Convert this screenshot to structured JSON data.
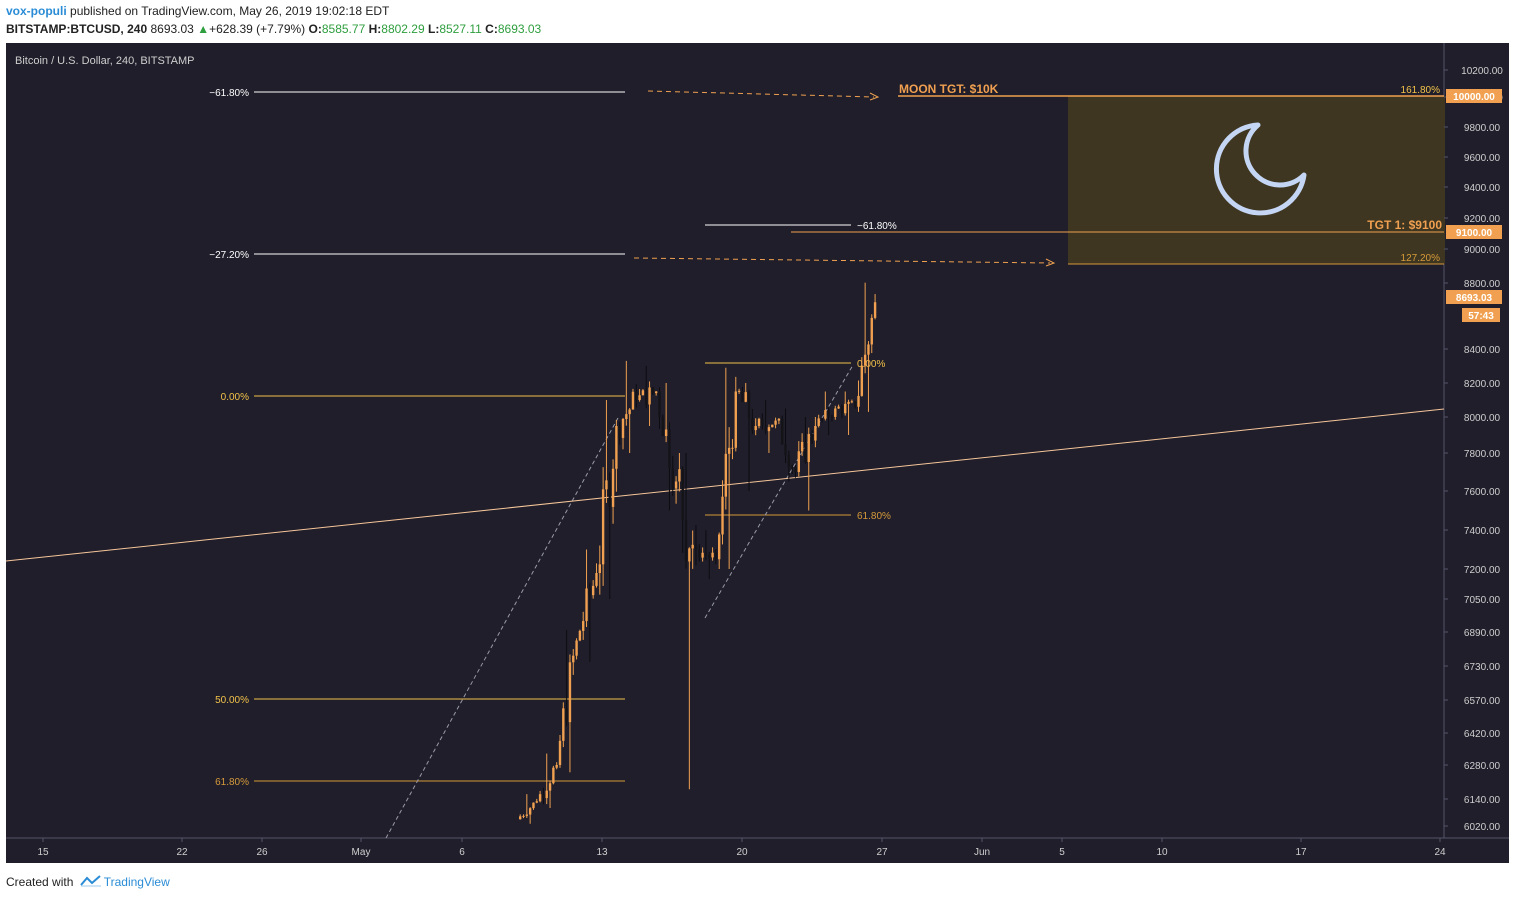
{
  "header": {
    "author": "vox-populi",
    "published": "published on TradingView.com, May 26, 2019 19:02:18 EDT",
    "symbol": "BITSTAMP:BTCUSD, 240",
    "last": "8693.03",
    "change": "+628.39 (+7.79%)",
    "o_label": "O:",
    "o": "8585.77",
    "h_label": "H:",
    "h": "8802.29",
    "l_label": "L:",
    "l": "8527.11",
    "c_label": "C:",
    "c": "8693.03"
  },
  "footer": {
    "created": "Created with",
    "brand": "TradingView"
  },
  "colors": {
    "background": "#1f1e2a",
    "candle": "#f0a050",
    "fib_gold": "#f3c24a",
    "fib_dark": "#d69a3a",
    "level_line": "#ffffff",
    "moon": "#c5d6f5",
    "zone": "#3e3620"
  },
  "chart_data": {
    "type": "candlestick",
    "title": "Bitcoin / U.S. Dollar, 240, BITSTAMP",
    "ylim": [
      5900,
      10450
    ],
    "y_ticks": [
      "10200.00",
      "10000.00",
      "9800.00",
      "9600.00",
      "9400.00",
      "9200.00",
      "9000.00",
      "8800.00",
      "8600.00",
      "8400.00",
      "8200.00",
      "8000.00",
      "7800.00",
      "7600.00",
      "7400.00",
      "7200.00",
      "7050.00",
      "6890.00",
      "6730.00",
      "6570.00",
      "6420.00",
      "6280.00",
      "6140.00",
      "6020.00"
    ],
    "x_ticks": [
      "15",
      "22",
      "26",
      "May",
      "6",
      "13",
      "20",
      "27",
      "Jun",
      "5",
      "10",
      "17",
      "24"
    ],
    "price_labels": {
      "target": "10000.00",
      "tgt1": "9100.00",
      "last": "8693.03",
      "countdown": "57:43"
    },
    "fib_labels": {
      "ext_top": "−61.80%",
      "ext_mid": "−27.20%",
      "zero": "0.00%",
      "half": "50.00%",
      "golden": "61.80%",
      "second_ext": "−61.80%",
      "second_zero": "0.00%",
      "second_golden": "61.80%",
      "box_top": "161.80%",
      "box_bottom": "127.20%"
    },
    "annotations": {
      "moon": "MOON  TGT: $10K",
      "tgt1": "TGT 1: $9100"
    },
    "levels": {
      "moon_target": 10000,
      "tgt1": 9100,
      "box_top": 10000,
      "box_bottom": 8900
    },
    "trendline": {
      "from": [
        "Apr 8",
        7230
      ],
      "to": [
        "Jun 27",
        8050
      ]
    },
    "candles_approx": [
      [
        "May 9",
        6050,
        6160,
        6030,
        6130
      ],
      [
        "May 10",
        6130,
        6330,
        6100,
        6280
      ],
      [
        "May 11",
        6280,
        6900,
        6250,
        6850
      ],
      [
        "May 12",
        6850,
        7300,
        6750,
        7180
      ],
      [
        "May 13",
        7180,
        8100,
        7050,
        7950
      ],
      [
        "May 14",
        7950,
        8330,
        7800,
        8100
      ],
      [
        "May 15",
        8100,
        8300,
        7950,
        8150
      ],
      [
        "May 16",
        8150,
        8200,
        7500,
        7650
      ],
      [
        "May 17",
        7650,
        7800,
        6180,
        7300
      ],
      [
        "May 18",
        7300,
        7400,
        7150,
        7250
      ],
      [
        "May 19",
        7250,
        8290,
        7200,
        8150
      ],
      [
        "May 20",
        8150,
        8200,
        7600,
        7950
      ],
      [
        "May 21",
        7950,
        8100,
        7800,
        7980
      ],
      [
        "May 22",
        7980,
        8050,
        7650,
        7700
      ],
      [
        "May 23",
        7700,
        8000,
        7500,
        7950
      ],
      [
        "May 24",
        7950,
        8150,
        7900,
        8050
      ],
      [
        "May 25",
        8050,
        8150,
        7900,
        8060
      ],
      [
        "May 26",
        8060,
        8802,
        8030,
        8693
      ]
    ]
  }
}
